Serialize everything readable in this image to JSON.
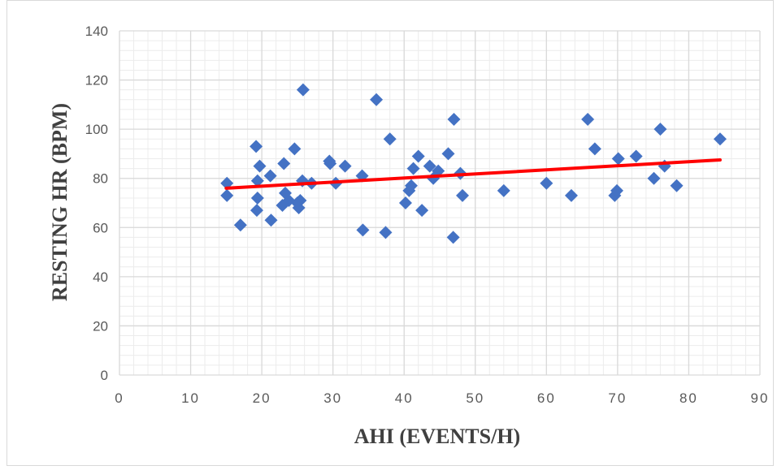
{
  "chart_data": {
    "type": "scatter",
    "title": "",
    "xlabel": "AHI (EVENTS/H)",
    "ylabel": "RESTING HR (BPM)",
    "xlim": [
      0,
      90
    ],
    "ylim": [
      0,
      140
    ],
    "x_ticks": [
      "0",
      "10",
      "20",
      "30",
      "40",
      "50",
      "60",
      "70",
      "80",
      "90"
    ],
    "y_ticks": [
      "0",
      "20",
      "40",
      "60",
      "80",
      "100",
      "120",
      "140"
    ],
    "grid": "major and minor",
    "legend": "none",
    "marker": "diamond",
    "colors": {
      "points": "#4472C4",
      "trendline": "#FF0000",
      "grid": "#d9d9d9",
      "minor_grid": "#ececec"
    },
    "series": [
      {
        "points": [
          [
            15.1,
            78
          ],
          [
            15.1,
            73
          ],
          [
            17.0,
            61
          ],
          [
            19.2,
            93
          ],
          [
            19.4,
            79
          ],
          [
            19.4,
            72
          ],
          [
            19.7,
            85
          ],
          [
            19.3,
            67
          ],
          [
            21.2,
            81
          ],
          [
            21.3,
            63
          ],
          [
            22.9,
            69
          ],
          [
            23.1,
            86
          ],
          [
            23.3,
            74
          ],
          [
            23.8,
            71
          ],
          [
            24.6,
            92
          ],
          [
            25.0,
            70
          ],
          [
            25.2,
            68
          ],
          [
            25.4,
            71
          ],
          [
            25.7,
            79
          ],
          [
            25.8,
            116
          ],
          [
            27.0,
            78
          ],
          [
            29.5,
            87
          ],
          [
            29.6,
            86
          ],
          [
            30.4,
            78
          ],
          [
            31.7,
            85
          ],
          [
            34.1,
            81
          ],
          [
            34.2,
            59
          ],
          [
            36.1,
            112
          ],
          [
            37.4,
            58
          ],
          [
            38.0,
            96
          ],
          [
            40.2,
            70
          ],
          [
            40.7,
            75
          ],
          [
            41.0,
            77
          ],
          [
            41.3,
            84
          ],
          [
            42.0,
            89
          ],
          [
            42.5,
            67
          ],
          [
            43.6,
            85
          ],
          [
            44.1,
            80
          ],
          [
            44.8,
            83
          ],
          [
            46.2,
            90
          ],
          [
            46.9,
            56
          ],
          [
            47.0,
            104
          ],
          [
            47.9,
            82
          ],
          [
            48.2,
            73
          ],
          [
            54.0,
            75
          ],
          [
            60.0,
            78
          ],
          [
            63.5,
            73
          ],
          [
            65.8,
            104
          ],
          [
            66.8,
            92
          ],
          [
            69.6,
            73
          ],
          [
            69.9,
            75
          ],
          [
            70.1,
            88
          ],
          [
            72.6,
            89
          ],
          [
            75.1,
            80
          ],
          [
            76.0,
            100
          ],
          [
            76.6,
            85
          ],
          [
            78.3,
            77
          ],
          [
            84.4,
            96
          ]
        ]
      }
    ],
    "trendline": {
      "x": [
        15,
        84.4
      ],
      "y": [
        76,
        87.5
      ]
    }
  }
}
